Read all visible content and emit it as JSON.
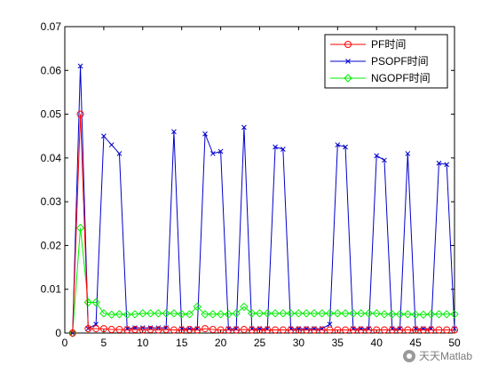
{
  "chart_data": {
    "type": "line",
    "title": "",
    "xlabel": "",
    "ylabel": "",
    "xlim": [
      0,
      50
    ],
    "ylim": [
      0,
      0.07
    ],
    "xticks": [
      0,
      5,
      10,
      15,
      20,
      25,
      30,
      35,
      40,
      45,
      50
    ],
    "yticks": [
      0,
      0.01,
      0.02,
      0.03,
      0.04,
      0.05,
      0.06,
      0.07
    ],
    "xtick_labels": [
      "0",
      "5",
      "10",
      "15",
      "20",
      "25",
      "30",
      "35",
      "40",
      "45",
      "50"
    ],
    "ytick_labels": [
      "0",
      "0.01",
      "0.02",
      "0.03",
      "0.04",
      "0.05",
      "0.06",
      "0.07"
    ],
    "grid": false,
    "legend_position": "top-right",
    "x": [
      1,
      2,
      3,
      4,
      5,
      6,
      7,
      8,
      9,
      10,
      11,
      12,
      13,
      14,
      15,
      16,
      17,
      18,
      19,
      20,
      21,
      22,
      23,
      24,
      25,
      26,
      27,
      28,
      29,
      30,
      31,
      32,
      33,
      34,
      35,
      36,
      37,
      38,
      39,
      40,
      41,
      42,
      43,
      44,
      45,
      46,
      47,
      48,
      49,
      50
    ],
    "series": [
      {
        "name": "PF时间",
        "color": "#ff0000",
        "marker": "circle",
        "values": [
          0,
          0.05,
          0.001,
          0.001,
          0.001,
          0.0008,
          0.0008,
          0.0007,
          0.0008,
          0.0007,
          0.0008,
          0.0007,
          0.0008,
          0.0007,
          0.0007,
          0.0008,
          0.0007,
          0.001,
          0.0008,
          0.0007,
          0.0007,
          0.0007,
          0.0008,
          0.0007,
          0.0007,
          0.0007,
          0.0007,
          0.0007,
          0.0007,
          0.0007,
          0.0007,
          0.0007,
          0.0007,
          0.0007,
          0.0007,
          0.0007,
          0.0007,
          0.0007,
          0.0007,
          0.0007,
          0.0007,
          0.0007,
          0.0007,
          0.0007,
          0.0007,
          0.0007,
          0.0007,
          0.0007,
          0.0007,
          0.0007
        ]
      },
      {
        "name": "PSOPF时间",
        "color": "#0000cc",
        "marker": "x",
        "values": [
          0,
          0.061,
          0.001,
          0.002,
          0.045,
          0.043,
          0.041,
          0.001,
          0.0012,
          0.0012,
          0.0012,
          0.0012,
          0.0012,
          0.046,
          0.001,
          0.001,
          0.001,
          0.0455,
          0.041,
          0.0415,
          0.001,
          0.001,
          0.047,
          0.001,
          0.001,
          0.001,
          0.0425,
          0.042,
          0.001,
          0.001,
          0.001,
          0.001,
          0.001,
          0.002,
          0.043,
          0.0425,
          0.001,
          0.001,
          0.001,
          0.0405,
          0.0395,
          0.001,
          0.001,
          0.041,
          0.001,
          0.001,
          0.001,
          0.0388,
          0.0385,
          0.001
        ]
      },
      {
        "name": "NGOPF时间",
        "color": "#00ee00",
        "marker": "diamond",
        "values": [
          0,
          0.024,
          0.007,
          0.007,
          0.0045,
          0.0042,
          0.0043,
          0.0042,
          0.0043,
          0.0045,
          0.0045,
          0.0045,
          0.0045,
          0.0045,
          0.0043,
          0.0043,
          0.006,
          0.0043,
          0.0043,
          0.0043,
          0.0043,
          0.0045,
          0.006,
          0.0045,
          0.0045,
          0.0045,
          0.0045,
          0.0045,
          0.0045,
          0.0045,
          0.0045,
          0.0045,
          0.0045,
          0.0045,
          0.0045,
          0.0045,
          0.0045,
          0.0045,
          0.0045,
          0.0045,
          0.0043,
          0.0043,
          0.0043,
          0.0043,
          0.0042,
          0.0042,
          0.0043,
          0.0043,
          0.0043,
          0.0043
        ]
      }
    ]
  },
  "watermark": {
    "text": "天天Matlab",
    "icon": "wechat-icon"
  }
}
